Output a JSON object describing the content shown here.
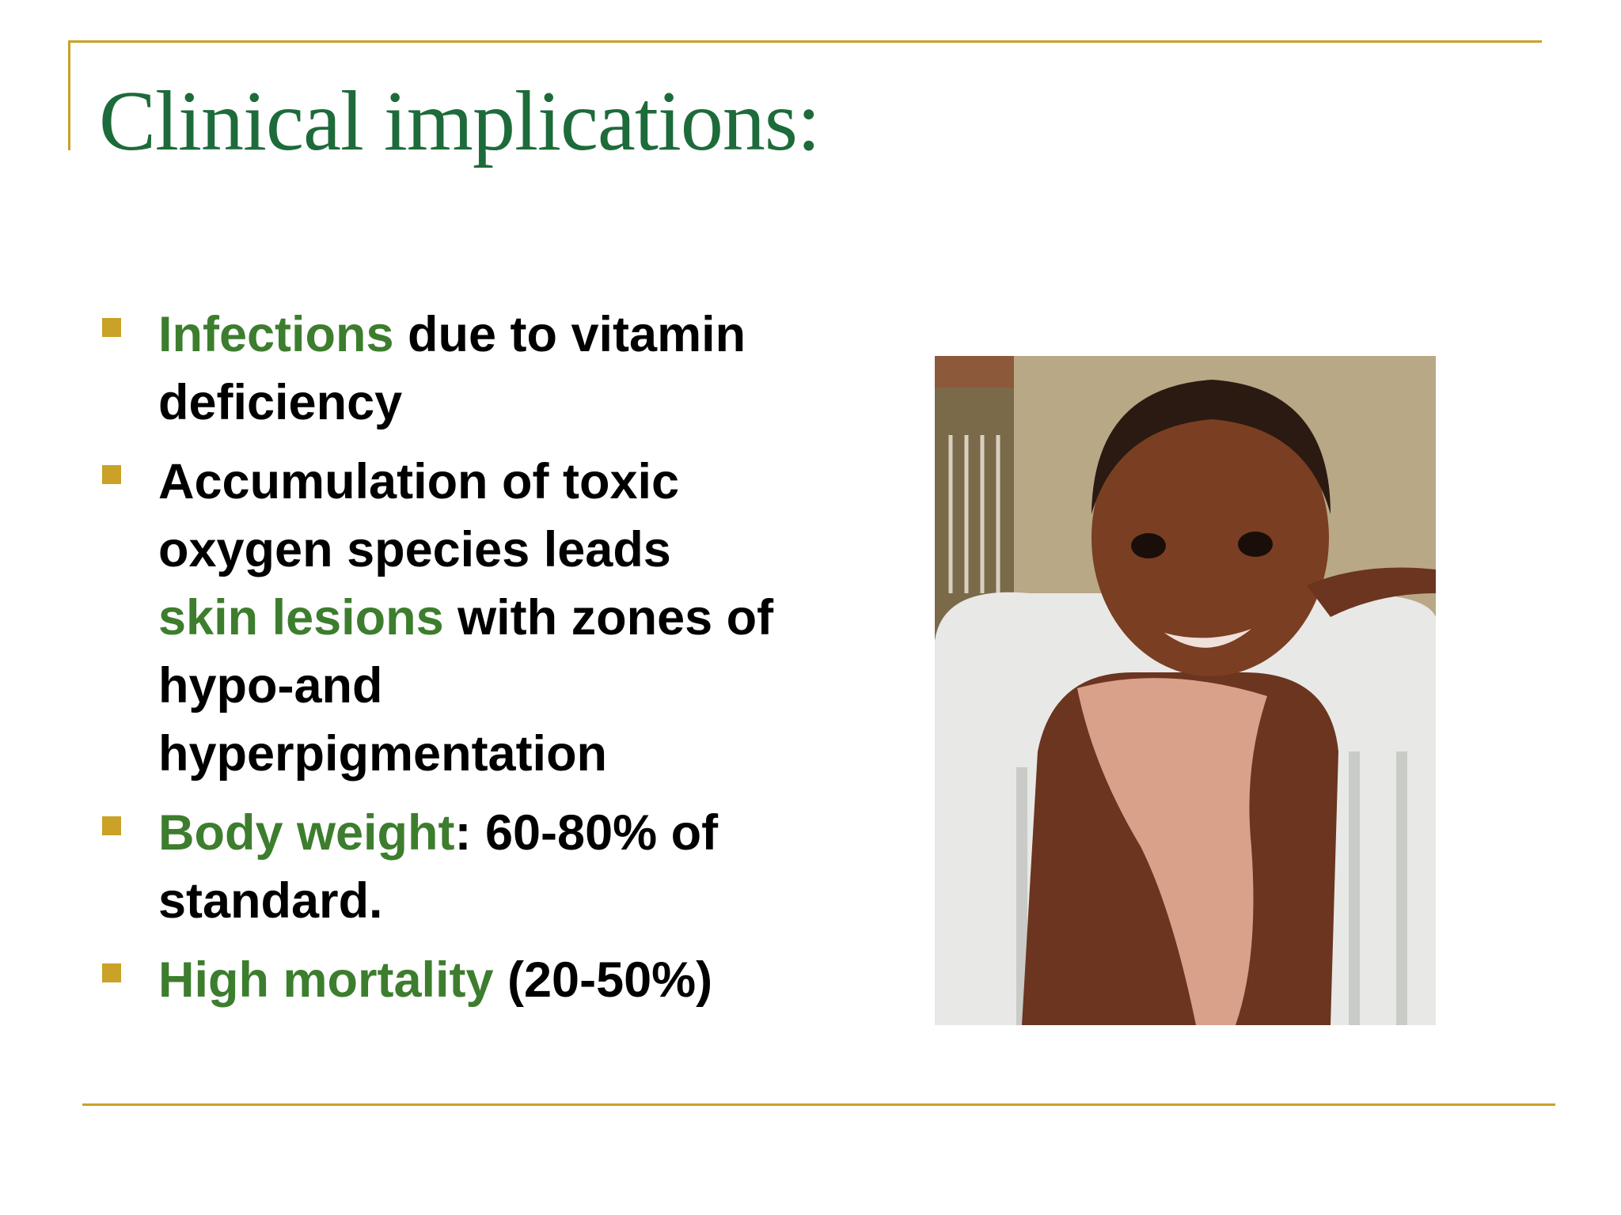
{
  "title": "Clinical implications:",
  "bullets": [
    {
      "parts": [
        {
          "text": "Infections",
          "color": "#3d7d2e"
        },
        {
          "text": " due to vitamin deficiency",
          "color": "#000000"
        }
      ]
    },
    {
      "parts": [
        {
          "text": "Accumulation of toxic oxygen species leads ",
          "color": "#000000"
        },
        {
          "text": "skin lesions",
          "color": "#3d7d2e"
        },
        {
          "text": " with zones of hypo-and hyperpigmentation",
          "color": "#000000"
        }
      ]
    },
    {
      "parts": [
        {
          "text": "Body weight",
          "color": "#3d7d2e"
        },
        {
          "text": ": 60-80% of standard.",
          "color": "#000000"
        }
      ]
    },
    {
      "parts": [
        {
          "text": "High mortality",
          "color": "#3d7d2e"
        },
        {
          "text": " (20-50%)",
          "color": "#000000"
        }
      ]
    }
  ]
}
